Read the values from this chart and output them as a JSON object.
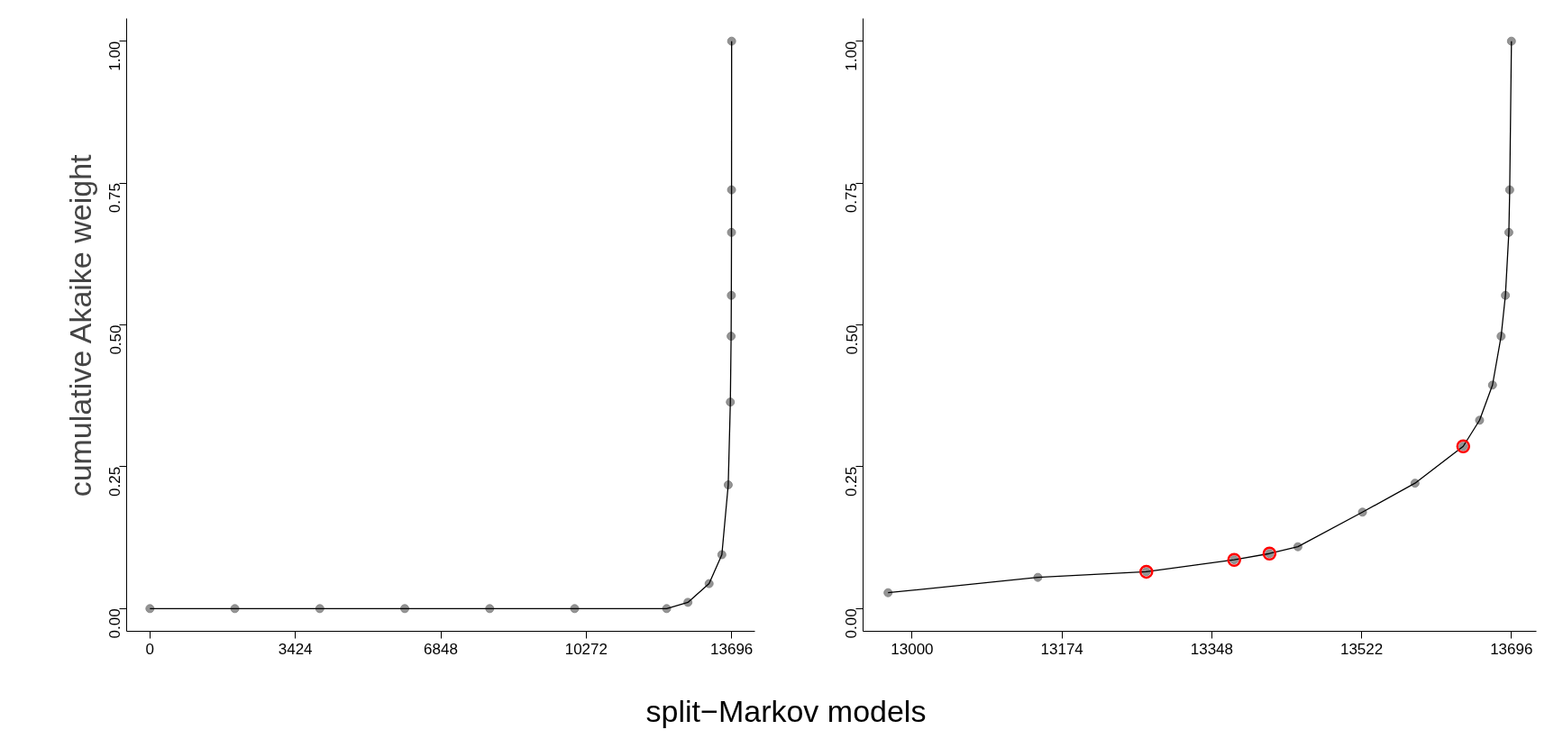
{
  "chart_data": [
    {
      "type": "line",
      "xlabel": "split−Markov models",
      "ylabel": "cumulative Akaike weight",
      "xlim": [
        -548,
        14244
      ],
      "ylim": [
        -0.04,
        1.04
      ],
      "xticks": [
        0,
        3424,
        6848,
        10272,
        13696
      ],
      "yticks": [
        {
          "value": 0,
          "label": "0.00"
        },
        {
          "value": 0.25,
          "label": "0.25"
        },
        {
          "value": 0.5,
          "label": "0.50"
        },
        {
          "value": 0.75,
          "label": "0.75"
        },
        {
          "value": 1,
          "label": "1.00"
        }
      ],
      "grid": false,
      "marker": "circle",
      "line_style": "solid",
      "series": [
        {
          "color": "#808080",
          "x": [
            0,
            2000,
            4000,
            6000,
            8000,
            10000,
            12166,
            12666,
            13166,
            13466,
            13616,
            13666,
            13684,
            13689,
            13693,
            13694,
            13696
          ],
          "values": [
            0,
            0,
            0,
            0,
            0,
            0,
            0,
            0.011,
            0.044,
            0.095,
            0.218,
            0.364,
            0.48,
            0.552,
            0.663,
            0.738,
            1.0
          ]
        }
      ]
    },
    {
      "type": "line",
      "xlim": [
        12943,
        13725
      ],
      "ylim": [
        -0.04,
        1.04
      ],
      "xticks": [
        13000,
        13174,
        13348,
        13522,
        13696
      ],
      "yticks": [
        {
          "value": 0,
          "label": "0.00"
        },
        {
          "value": 0.25,
          "label": "0.25"
        },
        {
          "value": 0.5,
          "label": "0.50"
        },
        {
          "value": 0.75,
          "label": "0.75"
        },
        {
          "value": 1,
          "label": "1.00"
        }
      ],
      "grid": false,
      "marker": "circle",
      "line_style": "solid",
      "series": [
        {
          "color": "#808080",
          "x": [
            12972,
            13146,
            13272,
            13374,
            13415,
            13448,
            13523,
            13584,
            13640,
            13659,
            13674,
            13684,
            13689,
            13693,
            13694,
            13696
          ],
          "values": [
            0.028,
            0.055,
            0.065,
            0.086,
            0.097,
            0.109,
            0.17,
            0.221,
            0.286,
            0.332,
            0.394,
            0.48,
            0.552,
            0.663,
            0.738,
            1.0
          ]
        },
        {
          "type": "scatter",
          "color": "#ff0000",
          "x": [
            13272,
            13374,
            13415,
            13640
          ],
          "values": [
            0.065,
            0.086,
            0.097,
            0.286
          ]
        }
      ]
    }
  ]
}
